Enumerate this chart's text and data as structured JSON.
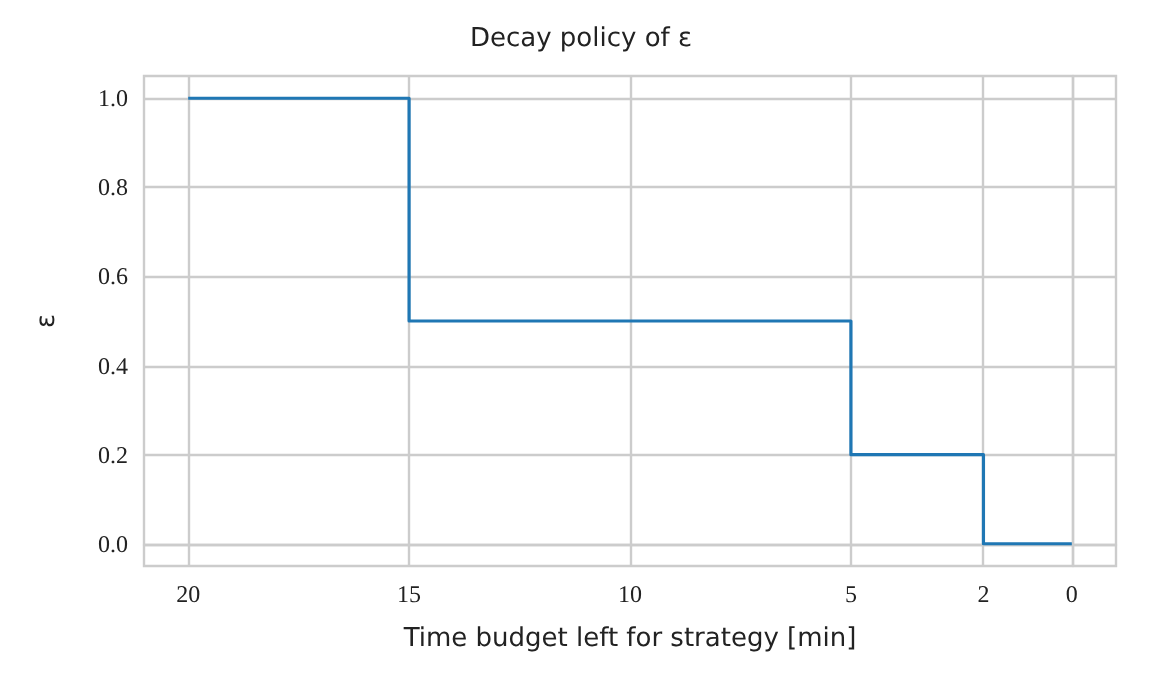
{
  "chart_data": {
    "type": "step",
    "title": "Decay policy of ε",
    "xlabel": "Time budget left for strategy [min]",
    "ylabel": "ε",
    "x": [
      20,
      15,
      5,
      2,
      0
    ],
    "series": [
      {
        "color": "#1f77b4",
        "values": [
          1.0,
          0.5,
          0.2,
          0.0,
          0.0
        ]
      }
    ],
    "xlim": [
      21,
      -1
    ],
    "xticks": [
      20,
      15,
      10,
      5,
      2,
      0
    ],
    "ylim": [
      -0.05,
      1.05
    ],
    "yticks": [
      {
        "value": 0,
        "label": "0.0"
      },
      {
        "value": 0.2,
        "label": "0.2"
      },
      {
        "value": 0.4,
        "label": "0.4"
      },
      {
        "value": 0.6,
        "label": "0.6"
      },
      {
        "value": 0.8,
        "label": "0.8"
      },
      {
        "value": 1,
        "label": "1.0"
      }
    ],
    "grid": true,
    "marker": "none",
    "line_style": "solid"
  }
}
